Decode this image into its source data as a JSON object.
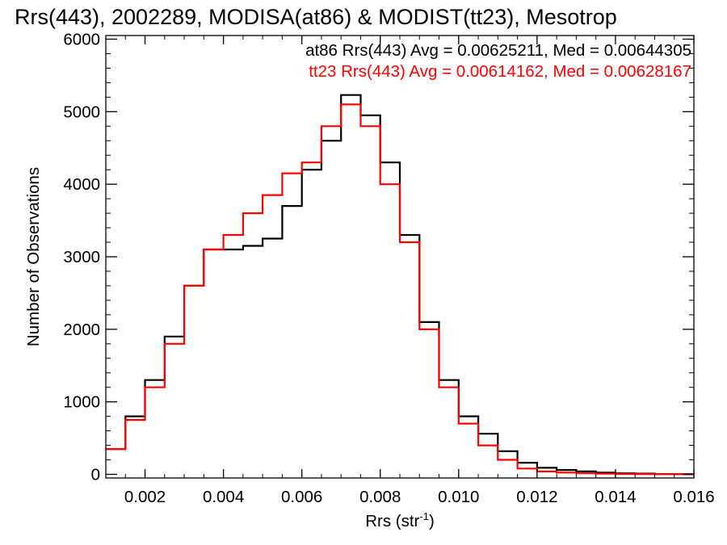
{
  "chart_data": {
    "type": "line",
    "title": "Rrs(443), 2002289, MODISA(at86) & MODIST(tt23), Mesotrop",
    "xlabel": "Rrs (str",
    "xlabel_sup": "-1",
    "xlabel_close": ")",
    "ylabel": "Number of Observations",
    "xlim": [
      0.001,
      0.016
    ],
    "ylim": [
      -50,
      6050
    ],
    "xticks": [
      0.002,
      0.004,
      0.006,
      0.008,
      0.01,
      0.012,
      0.014,
      0.016
    ],
    "xtick_labels": [
      "0.002",
      "0.004",
      "0.006",
      "0.008",
      "0.010",
      "0.012",
      "0.014",
      "0.016"
    ],
    "yticks": [
      0,
      1000,
      2000,
      3000,
      4000,
      5000,
      6000
    ],
    "ytick_labels": [
      "0",
      "1000",
      "2000",
      "3000",
      "4000",
      "5000",
      "6000"
    ],
    "grid": false,
    "legend_position": "top-right",
    "annotations": [
      {
        "text": "at86 Rrs(443) Avg = 0.00625211, Med = 0.00644305",
        "color": "#000000"
      },
      {
        "text": "tt23 Rrs(443) Avg = 0.00614162, Med = 0.00628167",
        "color": "#ff0000"
      }
    ],
    "series": [
      {
        "color": "#000000",
        "x": [
          0.001,
          0.0015,
          0.002,
          0.0025,
          0.003,
          0.0035,
          0.004,
          0.0045,
          0.005,
          0.0055,
          0.006,
          0.0065,
          0.007,
          0.0075,
          0.008,
          0.0085,
          0.009,
          0.0095,
          0.01,
          0.0105,
          0.011,
          0.0115,
          0.012,
          0.0125,
          0.013,
          0.0135,
          0.014,
          0.0145,
          0.015,
          0.0155,
          0.016
        ],
        "y": [
          350,
          800,
          1300,
          1900,
          2600,
          3100,
          3100,
          3150,
          3250,
          3700,
          4200,
          4600,
          5230,
          4950,
          4300,
          3300,
          2100,
          1300,
          800,
          560,
          320,
          160,
          90,
          60,
          40,
          25,
          15,
          10,
          5,
          3,
          2
        ]
      },
      {
        "color": "#ff0000",
        "x": [
          0.001,
          0.0015,
          0.002,
          0.0025,
          0.003,
          0.0035,
          0.004,
          0.0045,
          0.005,
          0.0055,
          0.006,
          0.0065,
          0.007,
          0.0075,
          0.008,
          0.0085,
          0.009,
          0.0095,
          0.01,
          0.0105,
          0.011,
          0.0115,
          0.012,
          0.0125,
          0.013,
          0.0135,
          0.014,
          0.0145,
          0.015,
          0.0155,
          0.016
        ],
        "y": [
          350,
          750,
          1200,
          1800,
          2600,
          3100,
          3300,
          3600,
          3850,
          4150,
          4300,
          4800,
          5100,
          4800,
          4000,
          3200,
          2000,
          1200,
          700,
          400,
          200,
          80,
          40,
          25,
          15,
          10,
          6,
          4,
          3,
          2,
          1
        ]
      }
    ]
  }
}
